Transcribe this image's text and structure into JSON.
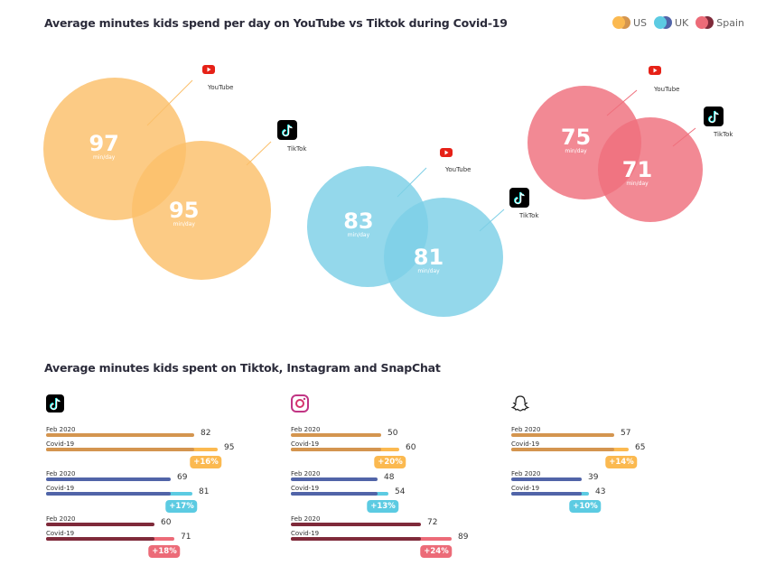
{
  "legend": [
    {
      "name": "US",
      "dark": "#d4954f",
      "light": "#fbb950"
    },
    {
      "name": "UK",
      "dark": "#5164a8",
      "light": "#5ccbe2"
    },
    {
      "name": "Spain",
      "dark": "#7f2a3a",
      "light": "#ec6b78"
    }
  ],
  "chart_data": [
    {
      "type": "venn",
      "title": "Average minutes kids spend per day on YouTube vs Tiktok during Covid-19",
      "unit": "min/day",
      "series": [
        {
          "name": "US",
          "values": [
            {
              "platform": "YouTube",
              "value": 97
            },
            {
              "platform": "TikTok",
              "value": 95
            }
          ],
          "color": "#fbc06a"
        },
        {
          "name": "UK",
          "values": [
            {
              "platform": "YouTube",
              "value": 83
            },
            {
              "platform": "TikTok",
              "value": 81
            }
          ],
          "color": "#7dcfe6"
        },
        {
          "name": "Spain",
          "values": [
            {
              "platform": "YouTube",
              "value": 75
            },
            {
              "platform": "TikTok",
              "value": 71
            }
          ],
          "color": "#ef6f7c"
        }
      ]
    },
    {
      "type": "bar",
      "title": "Average minutes kids spent on Tiktok, Instagram and SnapChat",
      "categories": [
        "Feb 2020",
        "Covid-19"
      ],
      "groups": [
        {
          "platform": "TikTok",
          "icon": "tiktok-icon",
          "series": [
            {
              "name": "US",
              "values": [
                82,
                95
              ],
              "change": "+16%"
            },
            {
              "name": "UK",
              "values": [
                69,
                81
              ],
              "change": "+17%"
            },
            {
              "name": "Spain",
              "values": [
                60,
                71
              ],
              "change": "+18%"
            }
          ]
        },
        {
          "platform": "Instagram",
          "icon": "instagram-icon",
          "series": [
            {
              "name": "US",
              "values": [
                50,
                60
              ],
              "change": "+20%"
            },
            {
              "name": "UK",
              "values": [
                48,
                54
              ],
              "change": "+13%"
            },
            {
              "name": "Spain",
              "values": [
                72,
                89
              ],
              "change": "+24%"
            }
          ]
        },
        {
          "platform": "SnapChat",
          "icon": "snapchat-icon",
          "series": [
            {
              "name": "US",
              "values": [
                57,
                65
              ],
              "change": "+14%"
            },
            {
              "name": "UK",
              "values": [
                39,
                43
              ],
              "change": "+10%"
            }
          ]
        }
      ]
    }
  ]
}
